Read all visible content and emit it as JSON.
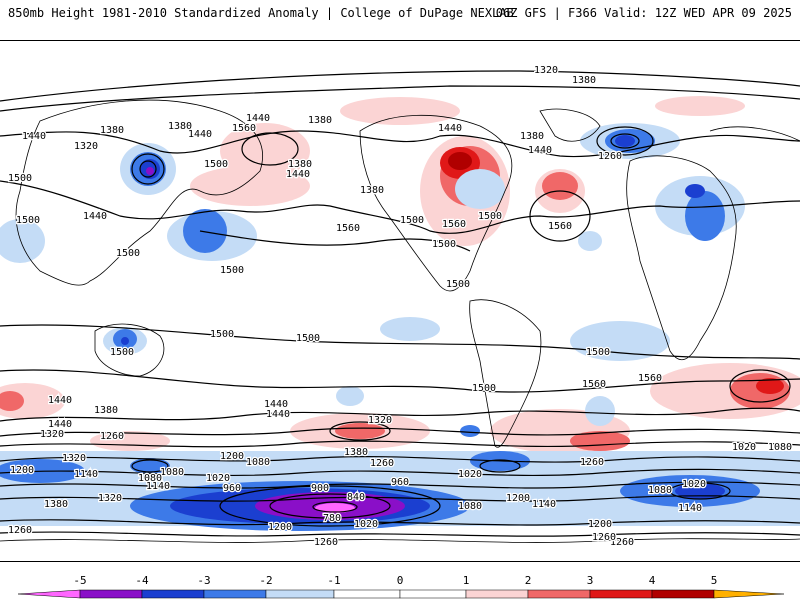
{
  "header": {
    "title": "850mb Height 1981-2010 Standardized Anomaly | College of DuPage NEXLAB",
    "run_info": "06Z GFS | F366 Valid: 12Z WED APR 09 2025"
  },
  "colors": {
    "neg5": "#ff66ff",
    "neg4": "#8a0fc8",
    "neg3": "#1b3fd0",
    "neg2": "#3d7ae8",
    "neg1": "#c4dcf6",
    "pos1": "#fbd4d4",
    "pos2": "#f06868",
    "pos3": "#e01818",
    "pos4": "#b00000",
    "pos5": "#ffb000"
  },
  "colorbar": {
    "labels": [
      "-5",
      "-4",
      "-3",
      "-2",
      "-1",
      "0",
      "1",
      "2",
      "3",
      "4",
      "5"
    ]
  },
  "contour_labels": [
    {
      "text": "1320"
    },
    {
      "text": "1380"
    },
    {
      "text": "1440"
    },
    {
      "text": "1380"
    },
    {
      "text": "1320"
    },
    {
      "text": "1380"
    },
    {
      "text": "1440"
    },
    {
      "text": "1500"
    },
    {
      "text": "1440"
    },
    {
      "text": "1500"
    },
    {
      "text": "1560"
    },
    {
      "text": "1380"
    },
    {
      "text": "1440"
    },
    {
      "text": "1380"
    },
    {
      "text": "1560"
    },
    {
      "text": "1500"
    },
    {
      "text": "1560"
    },
    {
      "text": "1500"
    },
    {
      "text": "1500"
    },
    {
      "text": "1440"
    },
    {
      "text": "1380"
    },
    {
      "text": "1260"
    },
    {
      "text": "1440"
    },
    {
      "text": "1380"
    },
    {
      "text": "1440"
    },
    {
      "text": "1500"
    },
    {
      "text": "1500"
    },
    {
      "text": "1500"
    },
    {
      "text": "1500"
    },
    {
      "text": "1500"
    },
    {
      "text": "1500"
    },
    {
      "text": "1500"
    },
    {
      "text": "1500"
    },
    {
      "text": "1560"
    },
    {
      "text": "1560"
    },
    {
      "text": "1440"
    },
    {
      "text": "1560"
    },
    {
      "text": "1500"
    },
    {
      "text": "1380"
    },
    {
      "text": "1440"
    },
    {
      "text": "1320"
    },
    {
      "text": "1440"
    },
    {
      "text": "1320"
    },
    {
      "text": "1440"
    },
    {
      "text": "1260"
    },
    {
      "text": "1380"
    },
    {
      "text": "1260"
    },
    {
      "text": "1320"
    },
    {
      "text": "1260"
    },
    {
      "text": "1200"
    },
    {
      "text": "1080"
    },
    {
      "text": "1140"
    },
    {
      "text": "1080"
    },
    {
      "text": "1200"
    },
    {
      "text": "1080"
    },
    {
      "text": "1140"
    },
    {
      "text": "1020"
    },
    {
      "text": "960"
    },
    {
      "text": "900"
    },
    {
      "text": "840"
    },
    {
      "text": "960"
    },
    {
      "text": "780"
    },
    {
      "text": "1020"
    },
    {
      "text": "1020"
    },
    {
      "text": "1080"
    },
    {
      "text": "1200"
    },
    {
      "text": "1080"
    },
    {
      "text": "1020"
    },
    {
      "text": "1140"
    },
    {
      "text": "1200"
    },
    {
      "text": "1140"
    },
    {
      "text": "1260"
    },
    {
      "text": "1320"
    },
    {
      "text": "1380"
    },
    {
      "text": "1260"
    },
    {
      "text": "1200"
    },
    {
      "text": "1260"
    },
    {
      "text": "1260"
    },
    {
      "text": "1080"
    },
    {
      "text": "1020"
    }
  ]
}
